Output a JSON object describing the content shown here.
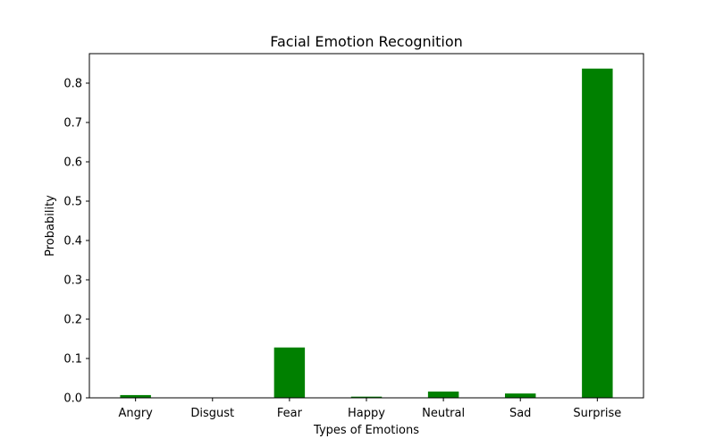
{
  "chart_data": {
    "type": "bar",
    "title": "Facial Emotion Recognition",
    "xlabel": "Types of Emotions",
    "ylabel": "Probability",
    "categories": [
      "Angry",
      "Disgust",
      "Fear",
      "Happy",
      "Neutral",
      "Sad",
      "Surprise"
    ],
    "values": [
      0.007,
      0.0,
      0.128,
      0.003,
      0.016,
      0.011,
      0.837
    ],
    "yticks": [
      "0.0",
      "0.1",
      "0.2",
      "0.3",
      "0.4",
      "0.5",
      "0.6",
      "0.7",
      "0.8"
    ],
    "ylim": [
      0,
      0.875
    ],
    "grid": false,
    "bar_color": "#008000"
  }
}
